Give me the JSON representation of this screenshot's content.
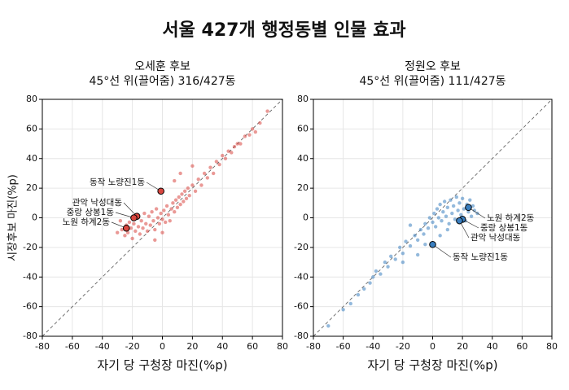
{
  "title": "서울 427개 행정동별 인물 효과",
  "chart_data": [
    {
      "type": "scatter",
      "title": "오세훈 후보",
      "subtitle": "45°선 위(끌어줌) 316/427동",
      "xlabel": "자기 당 구청장 마진(%p)",
      "ylabel": "시장후보 마진(%p)",
      "xlim": [
        -80,
        80
      ],
      "ylim": [
        -80,
        80
      ],
      "xticks": [
        -80,
        -60,
        -40,
        -20,
        0,
        20,
        40,
        60,
        80
      ],
      "yticks": [
        -80,
        -60,
        -40,
        -20,
        0,
        20,
        40,
        60,
        80
      ],
      "grid": true,
      "diagonal": true,
      "series": [
        {
          "color": "#d9463f",
          "x": [
            -27,
            -25,
            -24,
            -23,
            -22,
            -21,
            -20,
            -19,
            -18,
            -17,
            -16,
            -15,
            -14,
            -13,
            -12,
            -11,
            -10,
            -9,
            -8,
            -7,
            -6,
            -5,
            -4,
            -3,
            -2,
            -1,
            0,
            1,
            2,
            3,
            4,
            5,
            6,
            7,
            8,
            9,
            10,
            11,
            12,
            13,
            14,
            15,
            16,
            17,
            18,
            20,
            22,
            24,
            26,
            28,
            30,
            32,
            34,
            36,
            38,
            40,
            42,
            44,
            46,
            48,
            50,
            52,
            55,
            58,
            60,
            62,
            65,
            70,
            -30,
            -28,
            8,
            12,
            20,
            -5,
            0
          ],
          "values": [
            -8,
            -12,
            -5,
            -10,
            -3,
            -7,
            -14,
            -4,
            -9,
            2,
            -6,
            -11,
            -2,
            -7,
            3,
            -4,
            -9,
            1,
            -5,
            4,
            -2,
            -8,
            6,
            0,
            -4,
            3,
            -1,
            5,
            -3,
            8,
            2,
            -2,
            6,
            10,
            4,
            12,
            7,
            14,
            9,
            16,
            11,
            18,
            13,
            20,
            15,
            22,
            18,
            26,
            22,
            30,
            27,
            34,
            30,
            38,
            36,
            42,
            40,
            45,
            44,
            48,
            50,
            50,
            55,
            56,
            60,
            58,
            64,
            72,
            -10,
            -2,
            25,
            30,
            35,
            -15,
            -10
          ]
        }
      ],
      "annotations": [
        {
          "text": "동작 노량진1동",
          "x": -1,
          "y": 18
        },
        {
          "text": "관악 낙성대동",
          "x": -17,
          "y": 1
        },
        {
          "text": "중랑 상봉1동",
          "x": -19,
          "y": 0
        },
        {
          "text": "노원 하계2동",
          "x": -24,
          "y": -7
        }
      ]
    },
    {
      "type": "scatter",
      "title": "정원오 후보",
      "subtitle": "45°선 위(끌어줌) 111/427동",
      "xlabel": "자기 당 구청장 마진(%p)",
      "xlim": [
        -80,
        80
      ],
      "ylim": [
        -80,
        80
      ],
      "xticks": [
        -80,
        -60,
        -40,
        -20,
        0,
        20,
        40,
        60,
        80
      ],
      "yticks": [
        -80,
        -60,
        -40,
        -20,
        0,
        20,
        40,
        60,
        80
      ],
      "grid": true,
      "diagonal": true,
      "series": [
        {
          "color": "#3a7fc0",
          "x": [
            -70,
            -60,
            -55,
            -50,
            -46,
            -42,
            -40,
            -38,
            -35,
            -32,
            -30,
            -28,
            -25,
            -22,
            -20,
            -18,
            -15,
            -12,
            -10,
            -8,
            -6,
            -5,
            -3,
            -2,
            0,
            1,
            2,
            3,
            4,
            5,
            6,
            7,
            8,
            9,
            10,
            11,
            12,
            13,
            14,
            15,
            16,
            17,
            18,
            19,
            20,
            21,
            22,
            23,
            24,
            25,
            26,
            27,
            28,
            30,
            -20,
            -10,
            -5,
            5,
            10,
            -15
          ],
          "values": [
            -73,
            -62,
            -58,
            -52,
            -48,
            -44,
            -40,
            -36,
            -38,
            -30,
            -33,
            -26,
            -28,
            -20,
            -24,
            -16,
            -19,
            -12,
            -15,
            -8,
            -11,
            -4,
            -7,
            0,
            -3,
            3,
            -6,
            6,
            0,
            9,
            -2,
            4,
            11,
            1,
            7,
            -4,
            12,
            3,
            8,
            -1,
            14,
            5,
            10,
            2,
            13,
            6,
            -2,
            9,
            4,
            12,
            1,
            8,
            5,
            3,
            -30,
            -25,
            -18,
            -12,
            -8,
            -5
          ]
        }
      ],
      "annotations": [
        {
          "text": "노원 하계2동",
          "x": 24,
          "y": 7
        },
        {
          "text": "중랑 상봉1동",
          "x": 20,
          "y": -1
        },
        {
          "text": "관악 낙성대동",
          "x": 18,
          "y": -2
        },
        {
          "text": "동작 노량진1동",
          "x": 0,
          "y": -18
        }
      ]
    }
  ]
}
